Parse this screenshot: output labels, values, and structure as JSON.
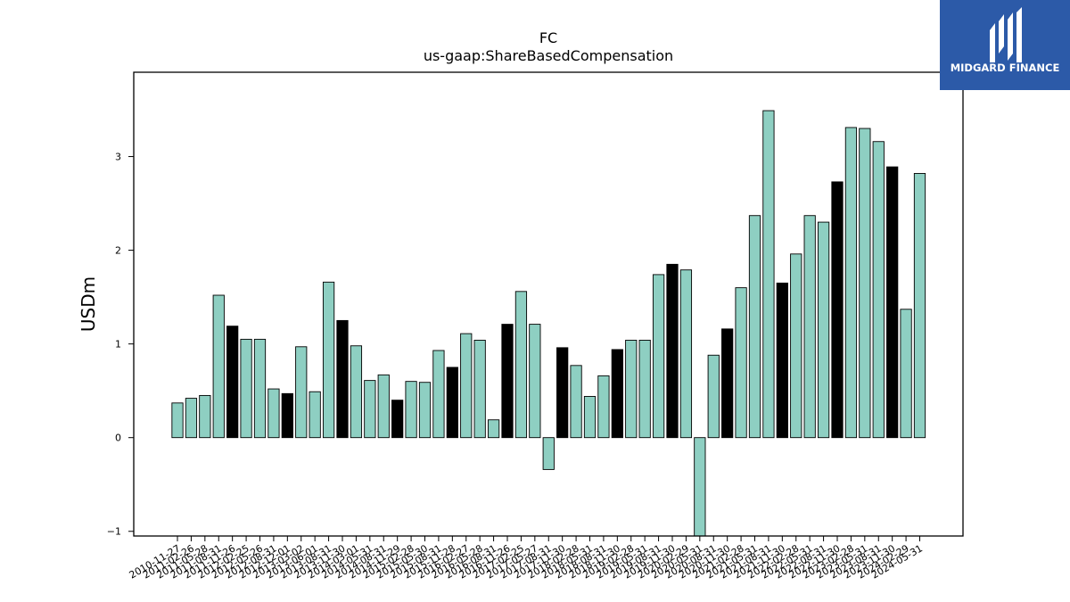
{
  "chart_data": {
    "type": "bar",
    "title": "FC",
    "subtitle": "us-gaap:ShareBasedCompensation",
    "xlabel": "",
    "ylabel": "USDm",
    "ylim": [
      -1.05,
      3.9
    ],
    "yticks": [
      -1,
      0,
      1,
      2,
      3
    ],
    "grid": false,
    "colors": {
      "default": "#8ecfc2",
      "highlight": "#000000",
      "edge": "#000000"
    },
    "categories": [
      "2010-11-27",
      "2011-02-26",
      "2011-05-28",
      "2011-08-31",
      "2011-11-26",
      "2012-02-25",
      "2012-05-26",
      "2012-08-31",
      "2012-12-01",
      "2013-03-02",
      "2013-06-01",
      "2013-08-31",
      "2013-11-30",
      "2014-03-01",
      "2014-05-31",
      "2014-08-31",
      "2014-11-29",
      "2015-02-28",
      "2015-05-30",
      "2015-08-31",
      "2015-11-28",
      "2016-02-27",
      "2016-05-28",
      "2016-08-31",
      "2016-11-26",
      "2017-02-25",
      "2017-05-27",
      "2017-08-31",
      "2017-11-30",
      "2018-02-28",
      "2018-05-31",
      "2018-08-31",
      "2018-11-30",
      "2019-02-28",
      "2019-05-31",
      "2019-08-31",
      "2019-11-30",
      "2020-02-29",
      "2020-05-31",
      "2020-08-31",
      "2020-11-30",
      "2021-02-28",
      "2021-05-31",
      "2021-08-31",
      "2021-11-30",
      "2022-02-28",
      "2022-05-31",
      "2022-08-31",
      "2022-11-30",
      "2023-02-28",
      "2023-05-31",
      "2023-08-31",
      "2023-11-30",
      "2024-02-29",
      "2024-05-31"
    ],
    "values": [
      0.37,
      0.42,
      0.45,
      1.52,
      1.19,
      1.05,
      1.05,
      0.52,
      0.47,
      0.97,
      0.49,
      1.66,
      1.25,
      0.98,
      0.61,
      0.67,
      0.4,
      0.6,
      0.59,
      0.93,
      0.75,
      1.11,
      1.04,
      0.19,
      1.21,
      1.56,
      1.21,
      -0.34,
      0.96,
      0.77,
      0.44,
      0.66,
      0.94,
      1.04,
      1.04,
      1.74,
      1.85,
      1.79,
      -1.05,
      0.88,
      1.16,
      1.6,
      2.37,
      3.49,
      1.65,
      1.96,
      2.37,
      2.3,
      2.73,
      3.31,
      3.3,
      3.16,
      2.89,
      1.37,
      2.82
    ],
    "highlight": [
      false,
      false,
      false,
      false,
      true,
      false,
      false,
      false,
      true,
      false,
      false,
      false,
      true,
      false,
      false,
      false,
      true,
      false,
      false,
      false,
      true,
      false,
      false,
      false,
      true,
      false,
      false,
      false,
      true,
      false,
      false,
      false,
      true,
      false,
      false,
      false,
      true,
      false,
      false,
      false,
      true,
      false,
      false,
      false,
      true,
      false,
      false,
      false,
      true,
      false,
      false,
      false,
      true,
      false,
      false
    ]
  },
  "logo": {
    "text": "MIDGARD FINANCE",
    "background": "#2c5aa8"
  }
}
